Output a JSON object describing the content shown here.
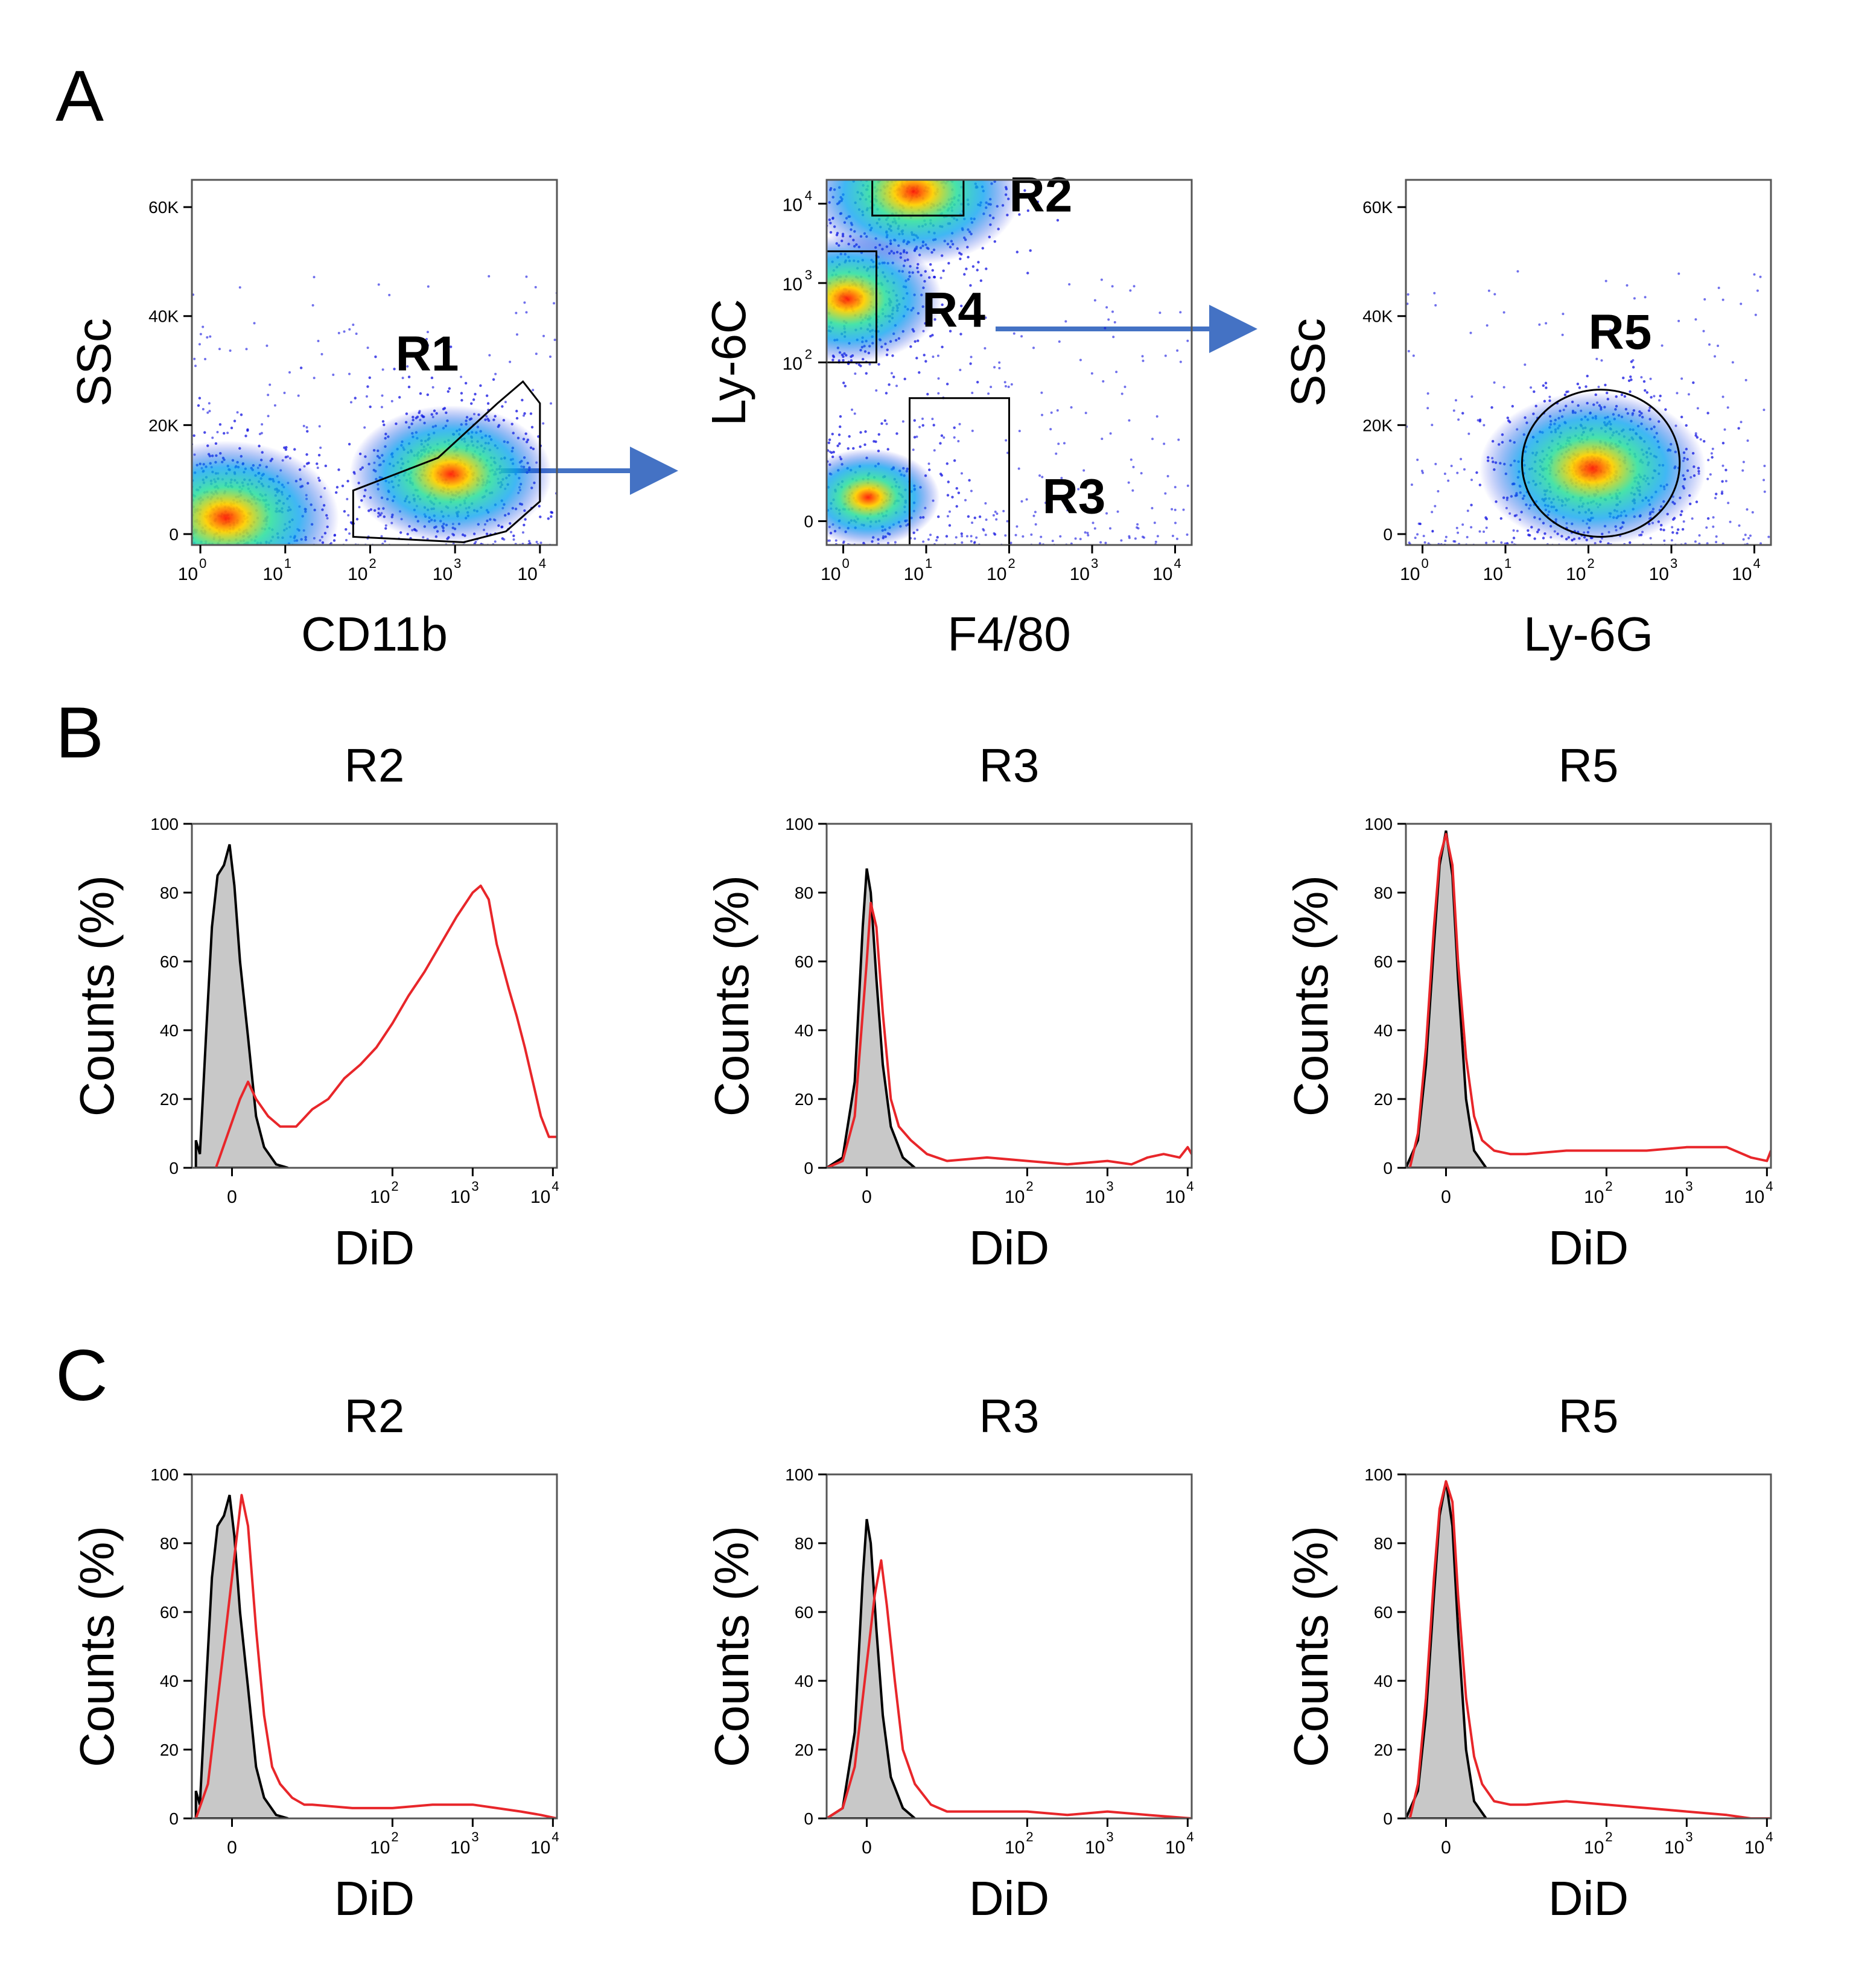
{
  "panel_labels": [
    "A",
    "B",
    "C"
  ],
  "colors": {
    "control_fill": "#c8c8c8",
    "control_line": "#000000",
    "treated_line": "#e8262a",
    "arrow": "#4472c4",
    "dot": "#1010e0",
    "density_hot": "#ff2000"
  },
  "icons": {
    "gate_arrow": "right-arrow-icon"
  },
  "chart_data": [
    {
      "id": "A1",
      "type": "scatter",
      "panel": "A",
      "xlabel": "CD11b",
      "ylabel": "SSc",
      "x_ticks": [
        {
          "v": 0,
          "base": "10",
          "exp": "0"
        },
        {
          "v": 1,
          "base": "10",
          "exp": "1"
        },
        {
          "v": 2,
          "base": "10",
          "exp": "2"
        },
        {
          "v": 3,
          "base": "10",
          "exp": "3"
        },
        {
          "v": 4,
          "base": "10",
          "exp": "4"
        }
      ],
      "xlim": [
        -0.1,
        4.2
      ],
      "y_ticks": [
        {
          "v": 0,
          "label": "0"
        },
        {
          "v": 20000,
          "label": "20K"
        },
        {
          "v": 40000,
          "label": "40K"
        },
        {
          "v": 60000,
          "label": "60K"
        }
      ],
      "ylim": [
        -2000,
        65000
      ],
      "density_hotspots": [
        {
          "x": 0.3,
          "y": 3000,
          "weight": 1.0
        },
        {
          "x": 2.95,
          "y": 11000,
          "weight": 0.8
        }
      ],
      "gates": [
        {
          "name": "R1",
          "shape": "polygon",
          "label_at": [
            2.3,
            30000
          ],
          "points": [
            [
              1.8,
              -500
            ],
            [
              1.8,
              8000
            ],
            [
              2.8,
              14000
            ],
            [
              3.5,
              24000
            ],
            [
              3.8,
              28000
            ],
            [
              4.0,
              24000
            ],
            [
              4.0,
              6000
            ],
            [
              3.6,
              500
            ],
            [
              3.1,
              -1500
            ],
            [
              2.2,
              -800
            ]
          ]
        }
      ]
    },
    {
      "id": "A2",
      "type": "scatter",
      "panel": "A",
      "xlabel": "F4/80",
      "ylabel": "Ly-6C",
      "x_ticks": [
        {
          "v": 0,
          "base": "10",
          "exp": "0"
        },
        {
          "v": 1,
          "base": "10",
          "exp": "1"
        },
        {
          "v": 2,
          "base": "10",
          "exp": "2"
        },
        {
          "v": 3,
          "base": "10",
          "exp": "3"
        },
        {
          "v": 4,
          "base": "10",
          "exp": "4"
        }
      ],
      "xlim": [
        -0.2,
        4.2
      ],
      "y_ticks": [
        {
          "v": 0,
          "label": "0"
        },
        {
          "v": 2,
          "base": "10",
          "exp": "2"
        },
        {
          "v": 3,
          "base": "10",
          "exp": "3"
        },
        {
          "v": 4,
          "base": "10",
          "exp": "4"
        }
      ],
      "ylim": [
        -0.3,
        4.3
      ],
      "density_hotspots": [
        {
          "x": 0.85,
          "y": 4.15,
          "weight": 0.9
        },
        {
          "x": 0.05,
          "y": 2.8,
          "weight": 0.7
        },
        {
          "x": 0.3,
          "y": 0.3,
          "weight": 0.4
        }
      ],
      "gates": [
        {
          "name": "R2",
          "shape": "rect",
          "x0": 0.35,
          "x1": 1.45,
          "y0": 3.85,
          "y1": 4.5,
          "label_at": [
            2.0,
            3.9
          ]
        },
        {
          "name": "R4",
          "shape": "rect",
          "x0": -0.2,
          "x1": 0.4,
          "y0": 2.0,
          "y1": 3.4,
          "label_at": [
            0.95,
            2.45
          ]
        },
        {
          "name": "R3",
          "shape": "rect",
          "x0": 0.8,
          "x1": 2.0,
          "y0": -0.3,
          "y1": 1.55,
          "label_at": [
            2.4,
            0.1
          ]
        }
      ]
    },
    {
      "id": "A3",
      "type": "scatter",
      "panel": "A",
      "xlabel": "Ly-6G",
      "ylabel": "SSc",
      "x_ticks": [
        {
          "v": 0,
          "base": "10",
          "exp": "0"
        },
        {
          "v": 1,
          "base": "10",
          "exp": "1"
        },
        {
          "v": 2,
          "base": "10",
          "exp": "2"
        },
        {
          "v": 3,
          "base": "10",
          "exp": "3"
        },
        {
          "v": 4,
          "base": "10",
          "exp": "4"
        }
      ],
      "xlim": [
        -0.2,
        4.2
      ],
      "y_ticks": [
        {
          "v": 0,
          "label": "0"
        },
        {
          "v": 20000,
          "label": "20K"
        },
        {
          "v": 40000,
          "label": "40K"
        },
        {
          "v": 60000,
          "label": "60K"
        }
      ],
      "ylim": [
        -2000,
        65000
      ],
      "density_hotspots": [
        {
          "x": 2.05,
          "y": 12000,
          "weight": 1.0
        }
      ],
      "gates": [
        {
          "name": "R5",
          "shape": "ellipse",
          "cx": 2.15,
          "cy": 13000,
          "rx": 0.95,
          "ry": 13500,
          "label_at": [
            2.0,
            34000
          ]
        }
      ]
    },
    {
      "id": "B-R2",
      "type": "area",
      "panel": "B",
      "title": "R2",
      "xlabel": "DiD",
      "ylabel": "Counts (%)",
      "y_ticks": [
        0,
        20,
        40,
        60,
        80,
        100
      ],
      "ylim": [
        0,
        100
      ],
      "xlim": [
        -0.5,
        4.05
      ],
      "x_ticks": [
        {
          "v": 0,
          "label": "0"
        },
        {
          "v": 2,
          "base": "10",
          "exp": "2"
        },
        {
          "v": 3,
          "base": "10",
          "exp": "3"
        },
        {
          "v": 4,
          "base": "10",
          "exp": "4"
        }
      ],
      "series": [
        {
          "role": "control",
          "x": [
            -0.45,
            -0.4,
            -0.32,
            -0.25,
            -0.18,
            -0.1,
            -0.03,
            0.03,
            0.1,
            0.2,
            0.3,
            0.4,
            0.55,
            0.7
          ],
          "y": [
            8,
            4,
            40,
            70,
            85,
            88,
            94,
            82,
            60,
            38,
            15,
            6,
            1,
            0
          ]
        },
        {
          "role": "treated",
          "x": [
            -0.2,
            -0.05,
            0.1,
            0.2,
            0.3,
            0.45,
            0.6,
            0.8,
            1.0,
            1.2,
            1.4,
            1.6,
            1.8,
            2.0,
            2.2,
            2.4,
            2.6,
            2.8,
            3.0,
            3.1,
            3.2,
            3.3,
            3.45,
            3.55,
            3.65,
            3.75,
            3.85,
            3.95,
            4.05
          ],
          "y": [
            0,
            10,
            20,
            25,
            20,
            15,
            12,
            12,
            17,
            20,
            26,
            30,
            35,
            42,
            50,
            57,
            65,
            73,
            80,
            82,
            78,
            65,
            52,
            44,
            35,
            25,
            15,
            9,
            9
          ]
        }
      ]
    },
    {
      "id": "B-R3",
      "type": "area",
      "panel": "B",
      "title": "R3",
      "xlabel": "DiD",
      "ylabel": "Counts (%)",
      "y_ticks": [
        0,
        20,
        40,
        60,
        80,
        100
      ],
      "ylim": [
        0,
        100
      ],
      "xlim": [
        -0.5,
        4.05
      ],
      "x_ticks": [
        {
          "v": 0,
          "label": "0"
        },
        {
          "v": 2,
          "base": "10",
          "exp": "2"
        },
        {
          "v": 3,
          "base": "10",
          "exp": "3"
        },
        {
          "v": 4,
          "base": "10",
          "exp": "4"
        }
      ],
      "series": [
        {
          "role": "control",
          "x": [
            -0.5,
            -0.3,
            -0.15,
            -0.05,
            0.0,
            0.05,
            0.12,
            0.2,
            0.3,
            0.45,
            0.6
          ],
          "y": [
            0,
            3,
            25,
            70,
            87,
            80,
            55,
            30,
            12,
            3,
            0
          ]
        },
        {
          "role": "treated",
          "x": [
            -0.5,
            -0.3,
            -0.15,
            0.0,
            0.05,
            0.12,
            0.2,
            0.3,
            0.4,
            0.55,
            0.75,
            1.0,
            1.5,
            2.0,
            2.5,
            3.0,
            3.3,
            3.5,
            3.7,
            3.9,
            4.0,
            4.05
          ],
          "y": [
            0,
            2,
            15,
            60,
            77,
            70,
            45,
            20,
            12,
            8,
            4,
            2,
            3,
            2,
            1,
            2,
            1,
            3,
            4,
            3,
            6,
            4
          ]
        }
      ]
    },
    {
      "id": "B-R5",
      "type": "area",
      "panel": "B",
      "title": "R5",
      "xlabel": "DiD",
      "ylabel": "Counts (%)",
      "y_ticks": [
        0,
        20,
        40,
        60,
        80,
        100
      ],
      "ylim": [
        0,
        100
      ],
      "xlim": [
        -0.5,
        4.05
      ],
      "x_ticks": [
        {
          "v": 0,
          "label": "0"
        },
        {
          "v": 2,
          "base": "10",
          "exp": "2"
        },
        {
          "v": 3,
          "base": "10",
          "exp": "3"
        },
        {
          "v": 4,
          "base": "10",
          "exp": "4"
        }
      ],
      "series": [
        {
          "role": "control",
          "x": [
            -0.5,
            -0.35,
            -0.25,
            -0.15,
            -0.08,
            0.0,
            0.08,
            0.15,
            0.25,
            0.35,
            0.5
          ],
          "y": [
            0,
            8,
            30,
            65,
            88,
            98,
            85,
            55,
            20,
            5,
            0
          ]
        },
        {
          "role": "treated",
          "x": [
            -0.45,
            -0.35,
            -0.25,
            -0.15,
            -0.08,
            0.0,
            0.08,
            0.15,
            0.25,
            0.35,
            0.45,
            0.6,
            0.8,
            1.0,
            1.5,
            2.0,
            2.5,
            3.0,
            3.5,
            3.8,
            4.0,
            4.05
          ],
          "y": [
            0,
            10,
            35,
            70,
            90,
            97,
            88,
            60,
            32,
            15,
            8,
            5,
            4,
            4,
            5,
            5,
            5,
            6,
            6,
            3,
            2,
            5
          ]
        }
      ]
    },
    {
      "id": "C-R2",
      "type": "area",
      "panel": "C",
      "title": "R2",
      "xlabel": "DiD",
      "ylabel": "Counts (%)",
      "y_ticks": [
        0,
        20,
        40,
        60,
        80,
        100
      ],
      "ylim": [
        0,
        100
      ],
      "xlim": [
        -0.5,
        4.05
      ],
      "x_ticks": [
        {
          "v": 0,
          "label": "0"
        },
        {
          "v": 2,
          "base": "10",
          "exp": "2"
        },
        {
          "v": 3,
          "base": "10",
          "exp": "3"
        },
        {
          "v": 4,
          "base": "10",
          "exp": "4"
        }
      ],
      "series": [
        {
          "role": "control",
          "x": [
            -0.45,
            -0.4,
            -0.32,
            -0.25,
            -0.18,
            -0.1,
            -0.03,
            0.03,
            0.1,
            0.2,
            0.3,
            0.4,
            0.55,
            0.7
          ],
          "y": [
            8,
            4,
            40,
            70,
            85,
            88,
            94,
            82,
            60,
            38,
            15,
            6,
            1,
            0
          ]
        },
        {
          "role": "treated",
          "x": [
            -0.45,
            -0.3,
            -0.15,
            -0.05,
            0.05,
            0.12,
            0.2,
            0.3,
            0.4,
            0.5,
            0.6,
            0.75,
            0.9,
            1.0,
            1.5,
            2.0,
            2.5,
            3.0,
            3.3,
            3.6,
            3.85,
            4.05
          ],
          "y": [
            0,
            10,
            40,
            60,
            80,
            94,
            85,
            55,
            30,
            15,
            10,
            6,
            4,
            4,
            3,
            3,
            4,
            4,
            3,
            2,
            1,
            0
          ]
        }
      ]
    },
    {
      "id": "C-R3",
      "type": "area",
      "panel": "C",
      "title": "R3",
      "xlabel": "DiD",
      "ylabel": "Counts (%)",
      "y_ticks": [
        0,
        20,
        40,
        60,
        80,
        100
      ],
      "ylim": [
        0,
        100
      ],
      "xlim": [
        -0.5,
        4.05
      ],
      "x_ticks": [
        {
          "v": 0,
          "label": "0"
        },
        {
          "v": 2,
          "base": "10",
          "exp": "2"
        },
        {
          "v": 3,
          "base": "10",
          "exp": "3"
        },
        {
          "v": 4,
          "base": "10",
          "exp": "4"
        }
      ],
      "series": [
        {
          "role": "control",
          "x": [
            -0.5,
            -0.3,
            -0.15,
            -0.05,
            0.0,
            0.05,
            0.12,
            0.2,
            0.3,
            0.45,
            0.6
          ],
          "y": [
            0,
            3,
            25,
            70,
            87,
            80,
            55,
            30,
            12,
            3,
            0
          ]
        },
        {
          "role": "treated",
          "x": [
            -0.5,
            -0.3,
            -0.15,
            0.0,
            0.1,
            0.18,
            0.25,
            0.35,
            0.45,
            0.6,
            0.8,
            1.0,
            1.5,
            2.0,
            2.5,
            3.0,
            3.5,
            4.05
          ],
          "y": [
            0,
            3,
            15,
            45,
            65,
            75,
            62,
            40,
            20,
            10,
            4,
            2,
            2,
            2,
            1,
            2,
            1,
            0
          ]
        }
      ]
    },
    {
      "id": "C-R5",
      "type": "area",
      "panel": "C",
      "title": "R5",
      "xlabel": "DiD",
      "ylabel": "Counts (%)",
      "y_ticks": [
        0,
        20,
        40,
        60,
        80,
        100
      ],
      "ylim": [
        0,
        100
      ],
      "xlim": [
        -0.5,
        4.05
      ],
      "x_ticks": [
        {
          "v": 0,
          "label": "0"
        },
        {
          "v": 2,
          "base": "10",
          "exp": "2"
        },
        {
          "v": 3,
          "base": "10",
          "exp": "3"
        },
        {
          "v": 4,
          "base": "10",
          "exp": "4"
        }
      ],
      "series": [
        {
          "role": "control",
          "x": [
            -0.5,
            -0.35,
            -0.25,
            -0.15,
            -0.08,
            0.0,
            0.08,
            0.15,
            0.25,
            0.35,
            0.5
          ],
          "y": [
            0,
            8,
            30,
            65,
            88,
            98,
            85,
            55,
            20,
            5,
            0
          ]
        },
        {
          "role": "treated",
          "x": [
            -0.45,
            -0.35,
            -0.25,
            -0.15,
            -0.08,
            0.0,
            0.08,
            0.15,
            0.25,
            0.35,
            0.45,
            0.6,
            0.8,
            1.0,
            1.5,
            2.0,
            2.5,
            3.0,
            3.5,
            3.8,
            4.05
          ],
          "y": [
            0,
            10,
            35,
            70,
            90,
            98,
            92,
            65,
            35,
            18,
            10,
            5,
            4,
            4,
            5,
            4,
            3,
            2,
            1,
            0,
            0
          ]
        }
      ]
    }
  ]
}
